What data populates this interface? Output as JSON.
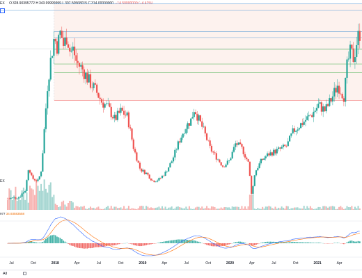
{
  "header": {
    "symbol_suffix": "EX",
    "ohlc": [
      {
        "label": "O",
        "value": "328.90395772"
      },
      {
        "label": "H",
        "value": "343.99999999"
      },
      {
        "label": "L",
        "value": "307.50568015"
      },
      {
        "label": "C",
        "value": "314.00000000"
      },
      {
        "label": "",
        "value": "−14.50000000 (−4.41%)"
      }
    ],
    "status_dot_color": "#26a69a",
    "toggle_icon": "collapse-icon"
  },
  "volume_pane": {
    "symbol_suffix": "EX"
  },
  "indicator": {
    "value1": "977",
    "value2": "34.93583558"
  },
  "bottom": {
    "range_label": "All",
    "calendar_icon": "calendar-icon"
  },
  "colors": {
    "up": "#26a69a",
    "down": "#ef5350",
    "fib_fill": "#fdf2ee",
    "fib_line_blue": "#5b9bd5",
    "fib_line_green": "#66bb6a",
    "fib_line_red": "#ef5350",
    "macd_line": "#2962ff",
    "signal_line": "#ff6d00"
  },
  "chart_data": {
    "type": "candlestick",
    "x_labels": [
      "Jul",
      "Oct",
      "2018",
      "Apr",
      "Jul",
      "Oct",
      "2019",
      "Apr",
      "Jul",
      "Oct",
      "2020",
      "Apr",
      "Jul",
      "Oct",
      "2021",
      "Apr"
    ],
    "x_label_bold": [
      false,
      false,
      true,
      false,
      false,
      false,
      true,
      false,
      false,
      false,
      true,
      false,
      false,
      false,
      true,
      false
    ],
    "price_points": [
      {
        "m": 0,
        "v": 5
      },
      {
        "m": 1.5,
        "v": 8
      },
      {
        "m": 2.5,
        "v": 20
      },
      {
        "m": 3,
        "v": 60
      },
      {
        "m": 3.5,
        "v": 40
      },
      {
        "m": 4.5,
        "v": 35
      },
      {
        "m": 5,
        "v": 55
      },
      {
        "m": 5.5,
        "v": 130
      },
      {
        "m": 6,
        "v": 205
      },
      {
        "m": 6.5,
        "v": 245
      },
      {
        "m": 7,
        "v": 280
      },
      {
        "m": 7.5,
        "v": 265
      },
      {
        "m": 8,
        "v": 290
      },
      {
        "m": 8.5,
        "v": 265
      },
      {
        "m": 9,
        "v": 285
      },
      {
        "m": 9.5,
        "v": 255
      },
      {
        "m": 10,
        "v": 260
      },
      {
        "m": 10.5,
        "v": 238
      },
      {
        "m": 11.5,
        "v": 225
      },
      {
        "m": 12.5,
        "v": 205
      },
      {
        "m": 13.5,
        "v": 190
      },
      {
        "m": 14.5,
        "v": 170
      },
      {
        "m": 15.5,
        "v": 160
      },
      {
        "m": 16.5,
        "v": 140
      },
      {
        "m": 17.5,
        "v": 155
      },
      {
        "m": 18.5,
        "v": 145
      },
      {
        "m": 19.5,
        "v": 90
      },
      {
        "m": 20.5,
        "v": 55
      },
      {
        "m": 21.5,
        "v": 48
      },
      {
        "m": 22.5,
        "v": 35
      },
      {
        "m": 23.5,
        "v": 38
      },
      {
        "m": 24.5,
        "v": 50
      },
      {
        "m": 25.5,
        "v": 70
      },
      {
        "m": 26.5,
        "v": 100
      },
      {
        "m": 27.5,
        "v": 125
      },
      {
        "m": 28.5,
        "v": 140
      },
      {
        "m": 29,
        "v": 160
      },
      {
        "m": 29.5,
        "v": 145
      },
      {
        "m": 30.5,
        "v": 120
      },
      {
        "m": 31.5,
        "v": 90
      },
      {
        "m": 32.5,
        "v": 75
      },
      {
        "m": 33.5,
        "v": 60
      },
      {
        "m": 34.5,
        "v": 70
      },
      {
        "m": 35.5,
        "v": 100
      },
      {
        "m": 36.5,
        "v": 90
      },
      {
        "m": 37.5,
        "v": 65
      },
      {
        "m": 38,
        "v": 10
      },
      {
        "m": 38.5,
        "v": 50
      },
      {
        "m": 39.5,
        "v": 70
      },
      {
        "m": 40.5,
        "v": 80
      },
      {
        "m": 41.5,
        "v": 85
      },
      {
        "m": 42.5,
        "v": 90
      },
      {
        "m": 43.5,
        "v": 95
      },
      {
        "m": 44.5,
        "v": 120
      },
      {
        "m": 45.5,
        "v": 130
      },
      {
        "m": 46.5,
        "v": 140
      },
      {
        "m": 47.5,
        "v": 150
      },
      {
        "m": 48.5,
        "v": 165
      },
      {
        "m": 49.5,
        "v": 155
      },
      {
        "m": 50.5,
        "v": 175
      },
      {
        "m": 51.5,
        "v": 200
      },
      {
        "m": 52.5,
        "v": 180
      },
      {
        "m": 53,
        "v": 235
      },
      {
        "m": 53.5,
        "v": 255
      },
      {
        "m": 54,
        "v": 245
      },
      {
        "m": 54.5,
        "v": 275
      },
      {
        "m": 55,
        "v": 290
      }
    ],
    "fib_levels": [
      {
        "v": 290,
        "color": "#5b9bd5"
      },
      {
        "v": 280,
        "color": "#5b9bd5"
      },
      {
        "v": 260,
        "color": "#66bb6a"
      },
      {
        "v": 235,
        "color": "#66bb6a"
      },
      {
        "v": 220,
        "color": "#66bb6a"
      },
      {
        "v": 173,
        "color": "#ef5350"
      }
    ],
    "fib_range": {
      "start_m": 7,
      "end_m": 55
    },
    "ylim": [
      0,
      330
    ],
    "xlim_months": [
      -1.5,
      55.3
    ],
    "volume_pattern": "higher in mid-2017 to early 2018, low thereafter, spike around March 2020",
    "macd_note": "MACD histogram with two signal lines"
  }
}
